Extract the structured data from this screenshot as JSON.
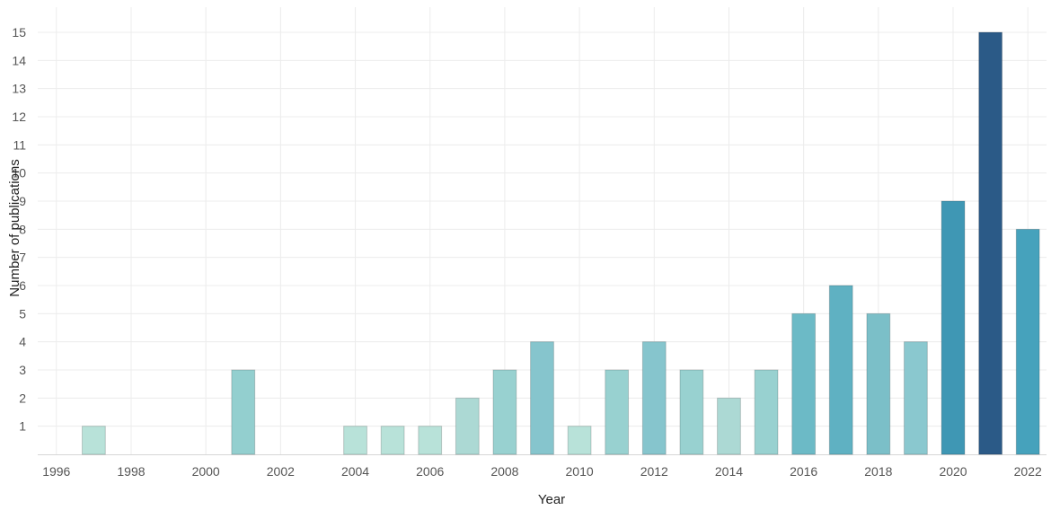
{
  "chart_data": {
    "type": "bar",
    "xlabel": "Year",
    "ylabel": "Number of publications",
    "ylim": [
      0,
      15
    ],
    "yticks": [
      1,
      2,
      3,
      4,
      5,
      6,
      7,
      8,
      9,
      10,
      11,
      12,
      13,
      14,
      15
    ],
    "xlim": [
      1995.5,
      2022.5
    ],
    "xticks": [
      "1996",
      "1998",
      "2000",
      "2002",
      "2004",
      "2006",
      "2008",
      "2010",
      "2012",
      "2014",
      "2016",
      "2018",
      "2020",
      "2022"
    ],
    "grid": true,
    "categories": [
      1997,
      2001,
      2004,
      2005,
      2006,
      2007,
      2008,
      2009,
      2010,
      2011,
      2012,
      2013,
      2014,
      2015,
      2016,
      2017,
      2018,
      2019,
      2020,
      2021,
      2022
    ],
    "values": [
      1,
      3,
      1,
      1,
      1,
      2,
      3,
      4,
      1,
      3,
      4,
      3,
      2,
      3,
      5,
      6,
      5,
      4,
      9,
      15,
      8
    ],
    "colors": [
      "#b8e2d9",
      "#93cfcf",
      "#b8e2d9",
      "#b8e2d9",
      "#b8e2d9",
      "#acd9d4",
      "#98d1d0",
      "#86c5cd",
      "#b8e2d9",
      "#98d1d0",
      "#86c5cd",
      "#98d1d0",
      "#acd9d4",
      "#98d1d0",
      "#6cbac6",
      "#5fb1c2",
      "#7bbfc8",
      "#8ac8cf",
      "#3f97b4",
      "#2b5a87",
      "#46a2bc"
    ]
  }
}
